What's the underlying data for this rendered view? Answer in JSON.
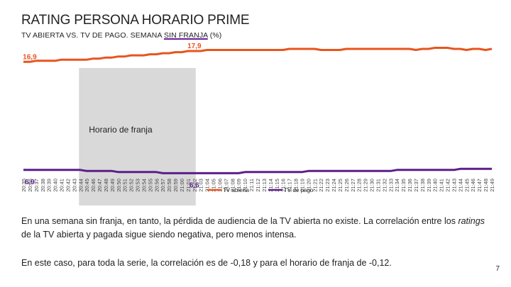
{
  "title": "RATING PERSONA HORARIO PRIME",
  "subtitle_pre": "TV ABIERTA VS. TV DE PAGO. SEMANA ",
  "subtitle_underlined": "SIN FRANJA",
  "subtitle_post": " (%)",
  "chart_data": {
    "type": "line",
    "title": "",
    "xlabel": "",
    "ylabel": "",
    "ylim": [
      0,
      20
    ],
    "grid": false,
    "legend_position": "bottom",
    "x": [
      "20:35",
      "20:36",
      "20:37",
      "20:38",
      "20:39",
      "20:40",
      "20:41",
      "20:42",
      "20:43",
      "20:44",
      "20:45",
      "20:46",
      "20:47",
      "20:48",
      "20:49",
      "20:50",
      "20:51",
      "20:52",
      "20:53",
      "20:54",
      "20:55",
      "20:56",
      "20:57",
      "20:58",
      "20:59",
      "21:00",
      "21:01",
      "21:02",
      "21:03",
      "21:04",
      "21:05",
      "21:06",
      "21:07",
      "21:08",
      "21:09",
      "21:10",
      "21:11",
      "21:12",
      "21:13",
      "21:14",
      "21:15",
      "21:16",
      "21:17",
      "21:18",
      "21:19",
      "21:20",
      "21:21",
      "21:22",
      "21:23",
      "21:24",
      "21:25",
      "21:26",
      "21:27",
      "21:28",
      "21:29",
      "21:30",
      "21:31",
      "21:32",
      "21:33",
      "21:34",
      "21:35",
      "21:36",
      "21:37",
      "21:38",
      "21:39",
      "21:40",
      "21:41",
      "21:42",
      "21:43",
      "21:44",
      "21:45",
      "21:46",
      "21:47",
      "21:48",
      "21:49"
    ],
    "shaded_region": {
      "label": "Horario de franja",
      "from": "20:44",
      "to": "21:02"
    },
    "series": [
      {
        "name": "TV abierta",
        "color": "#e8541e",
        "values": [
          16.9,
          16.9,
          17.0,
          17.0,
          17.0,
          17.0,
          17.1,
          17.1,
          17.1,
          17.1,
          17.1,
          17.2,
          17.2,
          17.3,
          17.3,
          17.4,
          17.4,
          17.5,
          17.5,
          17.5,
          17.6,
          17.6,
          17.7,
          17.7,
          17.8,
          17.8,
          17.9,
          17.9,
          17.9,
          18.0,
          18.0,
          18.0,
          18.0,
          18.0,
          18.0,
          18.0,
          18.0,
          18.0,
          18.0,
          18.0,
          18.0,
          18.0,
          18.1,
          18.1,
          18.1,
          18.1,
          18.1,
          18.0,
          18.0,
          18.0,
          18.0,
          18.1,
          18.1,
          18.1,
          18.1,
          18.1,
          18.1,
          18.1,
          18.1,
          18.1,
          18.1,
          18.1,
          18.0,
          18.1,
          18.1,
          18.2,
          18.2,
          18.2,
          18.1,
          18.1,
          18.0,
          18.1,
          18.1,
          18.0,
          18.1
        ],
        "labels": [
          {
            "at": "20:36",
            "text": "16,9"
          },
          {
            "at": "21:02",
            "text": "17,9"
          }
        ]
      },
      {
        "name": "TV de pago",
        "color": "#5b1f8a",
        "values": [
          6.9,
          6.9,
          6.9,
          6.9,
          6.9,
          6.9,
          6.9,
          6.9,
          6.9,
          6.9,
          6.8,
          6.8,
          6.8,
          6.8,
          6.8,
          6.7,
          6.7,
          6.7,
          6.7,
          6.7,
          6.7,
          6.7,
          6.6,
          6.6,
          6.6,
          6.6,
          6.6,
          6.6,
          6.6,
          6.6,
          6.6,
          6.6,
          6.6,
          6.6,
          6.6,
          6.7,
          6.7,
          6.7,
          6.7,
          6.7,
          6.7,
          6.7,
          6.7,
          6.7,
          6.7,
          6.8,
          6.8,
          6.8,
          6.8,
          6.8,
          6.8,
          6.8,
          6.8,
          6.8,
          6.8,
          6.8,
          6.8,
          6.8,
          6.8,
          6.9,
          6.9,
          6.9,
          6.9,
          6.9,
          6.9,
          6.9,
          6.9,
          6.9,
          6.9,
          7.0,
          7.0,
          7.0,
          7.0,
          7.0,
          7.0
        ],
        "labels": [
          {
            "at": "20:36",
            "text": "6,9"
          },
          {
            "at": "21:02",
            "text": "6,6"
          }
        ]
      }
    ]
  },
  "paragraph1_pre": "En una semana sin franja, en tanto, la pérdida de audiencia de la TV abierta no existe. La correlación entre los ",
  "paragraph1_em": "ratings",
  "paragraph1_post": " de la TV abierta y pagada sigue siendo negativa, pero menos intensa.",
  "paragraph2": "En este caso, para toda la serie, la correlación es de -0,18 y para el horario de franja de -0,12.",
  "page_number": "7"
}
